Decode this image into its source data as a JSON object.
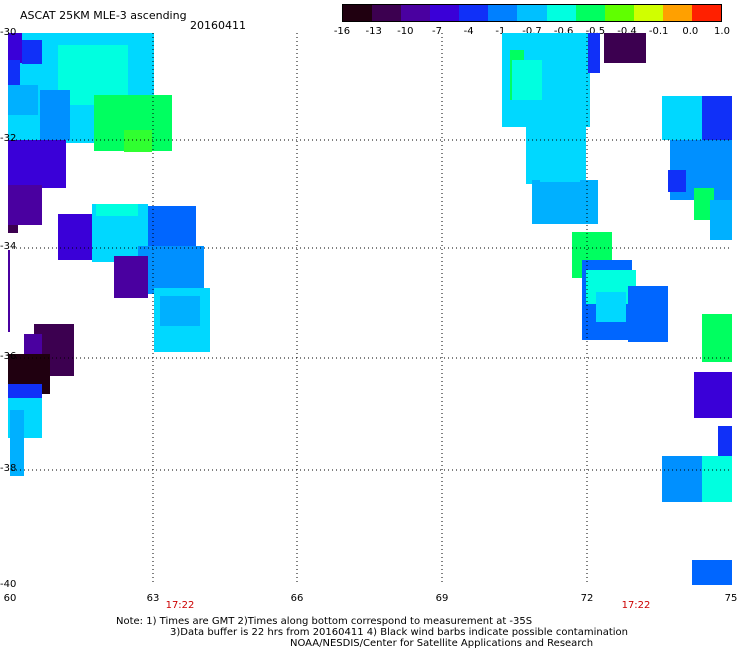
{
  "header": {
    "title": "ASCAT 25KM MLE-3 ascending",
    "date": "20160411"
  },
  "colorbar": {
    "labels": [
      "-16",
      "-13",
      "-10",
      "-7",
      "-4",
      "-1",
      "-0.7",
      "-0.6",
      "-0.5",
      "-0.4",
      "-0.1",
      "0.0",
      "1.0"
    ],
    "colors": [
      "#200010",
      "#3c0050",
      "#4a00a0",
      "#3a00d8",
      "#1030f8",
      "#0080ff",
      "#00c0ff",
      "#00ffe0",
      "#00ff60",
      "#60ff00",
      "#d0ff00",
      "#ffa000",
      "#ff2000"
    ]
  },
  "map": {
    "lat_labels": [
      "-30",
      "-32",
      "-34",
      "-36",
      "-38",
      "-40"
    ],
    "lon_labels": [
      "60",
      "63",
      "66",
      "69",
      "72",
      "75"
    ],
    "time_labels": [
      "17:22",
      "17:22"
    ]
  },
  "notes": {
    "line1": "Note: 1) Times are GMT 2)Times along bottom correspond to measurement at -35S",
    "line2": "3)Data buffer is 22 hrs from 20160411 4) Black wind barbs indicate possible contamination",
    "line3": "NOAA/NESDIS/Center for Satellite Applications and Research"
  }
}
